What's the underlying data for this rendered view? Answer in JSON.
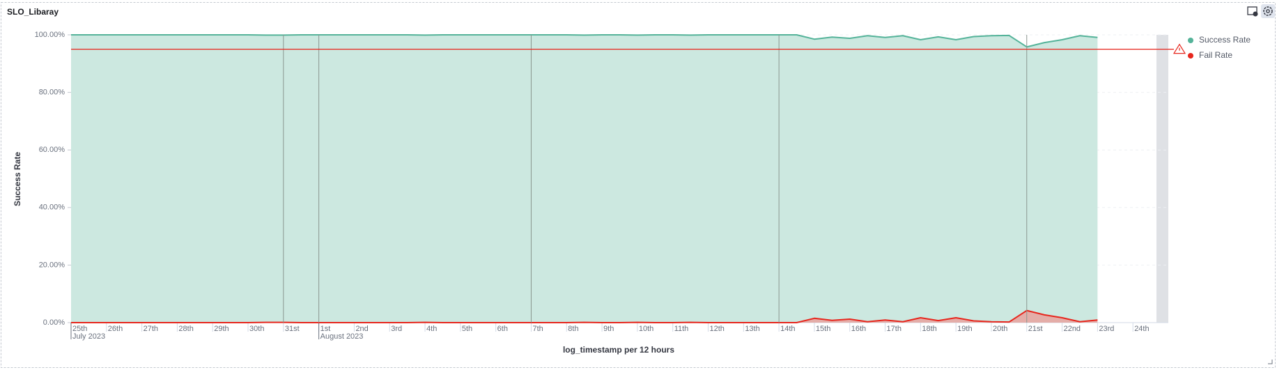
{
  "chart_data": {
    "type": "area",
    "title": "SLO_Libaray",
    "y_label": "Success Rate",
    "x_label": "log_timestamp per 12 hours",
    "x": [
      "2023-07-25T00:00",
      "2023-07-25T12:00",
      "2023-07-26T00:00",
      "2023-07-26T12:00",
      "2023-07-27T00:00",
      "2023-07-27T12:00",
      "2023-07-28T00:00",
      "2023-07-28T12:00",
      "2023-07-29T00:00",
      "2023-07-29T12:00",
      "2023-07-30T00:00",
      "2023-07-30T12:00",
      "2023-07-31T00:00",
      "2023-07-31T12:00",
      "2023-08-01T00:00",
      "2023-08-01T12:00",
      "2023-08-02T00:00",
      "2023-08-02T12:00",
      "2023-08-03T00:00",
      "2023-08-03T12:00",
      "2023-08-04T00:00",
      "2023-08-04T12:00",
      "2023-08-05T00:00",
      "2023-08-05T12:00",
      "2023-08-06T00:00",
      "2023-08-06T12:00",
      "2023-08-07T00:00",
      "2023-08-07T12:00",
      "2023-08-08T00:00",
      "2023-08-08T12:00",
      "2023-08-09T00:00",
      "2023-08-09T12:00",
      "2023-08-10T00:00",
      "2023-08-10T12:00",
      "2023-08-11T00:00",
      "2023-08-11T12:00",
      "2023-08-12T00:00",
      "2023-08-12T12:00",
      "2023-08-13T00:00",
      "2023-08-13T12:00",
      "2023-08-14T00:00",
      "2023-08-14T12:00",
      "2023-08-15T00:00",
      "2023-08-15T12:00",
      "2023-08-16T00:00",
      "2023-08-16T12:00",
      "2023-08-17T00:00",
      "2023-08-17T12:00",
      "2023-08-18T00:00",
      "2023-08-18T12:00",
      "2023-08-19T00:00",
      "2023-08-19T12:00",
      "2023-08-20T00:00",
      "2023-08-20T12:00",
      "2023-08-21T00:00",
      "2023-08-21T12:00",
      "2023-08-22T00:00",
      "2023-08-22T12:00",
      "2023-08-23T00:00"
    ],
    "series": [
      {
        "name": "Success Rate",
        "color": "#54b399",
        "fill": "#cce8e0",
        "values": [
          100,
          100,
          100,
          100,
          100,
          100,
          100,
          100,
          100,
          100,
          100,
          99.9,
          99.9,
          100,
          100,
          100,
          100,
          100,
          100,
          100,
          99.9,
          100,
          100,
          100,
          100,
          100,
          100,
          100,
          100,
          99.9,
          100,
          100,
          99.9,
          100,
          100,
          99.9,
          100,
          100,
          100,
          100,
          100,
          100,
          98.5,
          99.2,
          98.8,
          99.7,
          99.1,
          99.7,
          98.3,
          99.3,
          98.3,
          99.4,
          99.7,
          99.8,
          95.8,
          97.3,
          98.3,
          99.7,
          99.1
        ]
      },
      {
        "name": "Fail Rate",
        "color": "#e7261d",
        "fill": "#e7a6a2",
        "values": [
          0,
          0,
          0,
          0,
          0,
          0,
          0,
          0,
          0,
          0,
          0,
          0.1,
          0.1,
          0,
          0,
          0,
          0,
          0,
          0,
          0,
          0.1,
          0,
          0,
          0,
          0,
          0,
          0,
          0,
          0,
          0.1,
          0,
          0,
          0.1,
          0,
          0,
          0.1,
          0,
          0,
          0,
          0,
          0,
          0,
          1.5,
          0.8,
          1.2,
          0.3,
          0.9,
          0.3,
          1.7,
          0.7,
          1.7,
          0.6,
          0.3,
          0.2,
          4.2,
          2.7,
          1.7,
          0.3,
          0.9
        ]
      }
    ],
    "threshold": {
      "value": 95,
      "color": "#e7261d"
    },
    "reference_x": [
      "2023-07-31T00:00",
      "2023-08-01T00:00",
      "2023-08-07T00:00",
      "2023-08-14T00:00",
      "2023-08-21T00:00"
    ],
    "xlim": [
      "2023-07-25T00:00",
      "2023-08-25T00:00"
    ],
    "xticks": [
      {
        "value": "2023-07-25T00:00",
        "label": "25th"
      },
      {
        "value": "2023-07-26T00:00",
        "label": "26th"
      },
      {
        "value": "2023-07-27T00:00",
        "label": "27th"
      },
      {
        "value": "2023-07-28T00:00",
        "label": "28th"
      },
      {
        "value": "2023-07-29T00:00",
        "label": "29th"
      },
      {
        "value": "2023-07-30T00:00",
        "label": "30th"
      },
      {
        "value": "2023-07-31T00:00",
        "label": "31st"
      },
      {
        "value": "2023-08-01T00:00",
        "label": "1st"
      },
      {
        "value": "2023-08-02T00:00",
        "label": "2nd"
      },
      {
        "value": "2023-08-03T00:00",
        "label": "3rd"
      },
      {
        "value": "2023-08-04T00:00",
        "label": "4th"
      },
      {
        "value": "2023-08-05T00:00",
        "label": "5th"
      },
      {
        "value": "2023-08-06T00:00",
        "label": "6th"
      },
      {
        "value": "2023-08-07T00:00",
        "label": "7th"
      },
      {
        "value": "2023-08-08T00:00",
        "label": "8th"
      },
      {
        "value": "2023-08-09T00:00",
        "label": "9th"
      },
      {
        "value": "2023-08-10T00:00",
        "label": "10th"
      },
      {
        "value": "2023-08-11T00:00",
        "label": "11th"
      },
      {
        "value": "2023-08-12T00:00",
        "label": "12th"
      },
      {
        "value": "2023-08-13T00:00",
        "label": "13th"
      },
      {
        "value": "2023-08-14T00:00",
        "label": "14th"
      },
      {
        "value": "2023-08-15T00:00",
        "label": "15th"
      },
      {
        "value": "2023-08-16T00:00",
        "label": "16th"
      },
      {
        "value": "2023-08-17T00:00",
        "label": "17th"
      },
      {
        "value": "2023-08-18T00:00",
        "label": "18th"
      },
      {
        "value": "2023-08-19T00:00",
        "label": "19th"
      },
      {
        "value": "2023-08-20T00:00",
        "label": "20th"
      },
      {
        "value": "2023-08-21T00:00",
        "label": "21st"
      },
      {
        "value": "2023-08-22T00:00",
        "label": "22nd"
      },
      {
        "value": "2023-08-23T00:00",
        "label": "23rd"
      },
      {
        "value": "2023-08-24T00:00",
        "label": "24th"
      }
    ],
    "x_month_labels": [
      {
        "value": "2023-07-25T00:00",
        "label": "July 2023"
      },
      {
        "value": "2023-08-01T00:00",
        "label": "August 2023"
      }
    ],
    "ylim": [
      0,
      100
    ],
    "yticks": [
      {
        "value": 0,
        "label": "0.00%"
      },
      {
        "value": 20,
        "label": "20.00%"
      },
      {
        "value": 40,
        "label": "40.00%"
      },
      {
        "value": 60,
        "label": "60.00%"
      },
      {
        "value": 80,
        "label": "80.00%"
      },
      {
        "value": 100,
        "label": "100.00%"
      }
    ],
    "grid": true,
    "legend": "right"
  }
}
